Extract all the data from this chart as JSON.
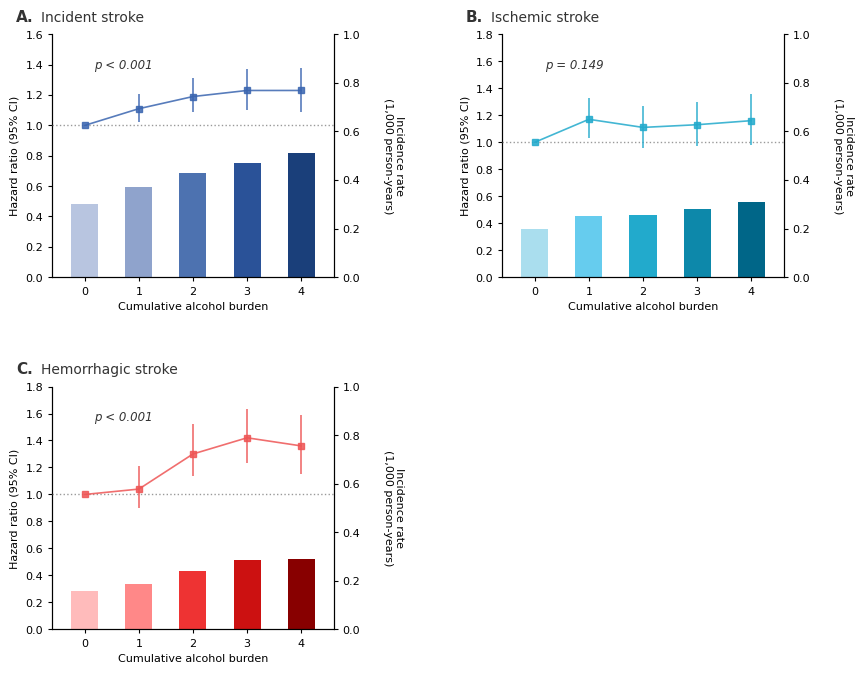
{
  "panels": [
    {
      "label": "A.",
      "title": "Incident stroke",
      "pvalue": "p < 0.001",
      "bar_values": [
        0.3,
        0.37,
        0.43,
        0.47,
        0.51
      ],
      "bar_colors": [
        "#b8c5e0",
        "#8fa3cc",
        "#4d72b0",
        "#2a5298",
        "#1a3f7a"
      ],
      "line_values": [
        1.0,
        1.11,
        1.19,
        1.23,
        1.23
      ],
      "line_ci_low": [
        1.0,
        1.02,
        1.09,
        1.1,
        1.09
      ],
      "line_ci_high": [
        1.0,
        1.21,
        1.31,
        1.37,
        1.38
      ],
      "line_color": "#3a65b0",
      "ylim_left": [
        0,
        1.6
      ],
      "ylim_right": [
        0.0,
        1.0
      ],
      "yticks_left": [
        0.0,
        0.2,
        0.4,
        0.6,
        0.8,
        1.0,
        1.2,
        1.4,
        1.6
      ],
      "yticks_right": [
        0.0,
        0.2,
        0.4,
        0.6,
        0.8,
        1.0
      ]
    },
    {
      "label": "B.",
      "title": "Ischemic stroke",
      "pvalue": "p = 0.149",
      "bar_values": [
        0.2,
        0.25,
        0.255,
        0.28,
        0.31
      ],
      "bar_colors": [
        "#aadeee",
        "#66ccee",
        "#22aacc",
        "#0d88aa",
        "#006688"
      ],
      "line_values": [
        1.0,
        1.17,
        1.11,
        1.13,
        1.16
      ],
      "line_ci_low": [
        1.0,
        1.03,
        0.96,
        0.97,
        0.98
      ],
      "line_ci_high": [
        1.0,
        1.33,
        1.27,
        1.3,
        1.36
      ],
      "line_color": "#22aacc",
      "ylim_left": [
        0,
        1.8
      ],
      "ylim_right": [
        0.0,
        1.0
      ],
      "yticks_left": [
        0.0,
        0.2,
        0.4,
        0.6,
        0.8,
        1.0,
        1.2,
        1.4,
        1.6,
        1.8
      ],
      "yticks_right": [
        0.0,
        0.2,
        0.4,
        0.6,
        0.8,
        1.0
      ]
    },
    {
      "label": "C.",
      "title": "Hemorrhagic stroke",
      "pvalue": "p < 0.001",
      "bar_values": [
        0.16,
        0.185,
        0.24,
        0.285,
        0.29
      ],
      "bar_colors": [
        "#ffbbbb",
        "#ff8888",
        "#ee3333",
        "#cc1111",
        "#880000"
      ],
      "line_values": [
        1.0,
        1.04,
        1.3,
        1.42,
        1.36
      ],
      "line_ci_low": [
        1.0,
        0.9,
        1.14,
        1.23,
        1.15
      ],
      "line_ci_high": [
        1.0,
        1.21,
        1.52,
        1.63,
        1.59
      ],
      "line_color": "#ee5555",
      "ylim_left": [
        0,
        1.8
      ],
      "ylim_right": [
        0.0,
        1.0
      ],
      "yticks_left": [
        0.0,
        0.2,
        0.4,
        0.6,
        0.8,
        1.0,
        1.2,
        1.4,
        1.6,
        1.8
      ],
      "yticks_right": [
        0.0,
        0.2,
        0.4,
        0.6,
        0.8,
        1.0
      ]
    }
  ],
  "x_labels": [
    0,
    1,
    2,
    3,
    4
  ],
  "xlabel": "Cumulative alcohol burden",
  "ylabel_left": "Hazard ratio (95% CI)",
  "ylabel_right": "Incidence rate\n(1,000 person-years)",
  "dashed_line_y": 1.0
}
